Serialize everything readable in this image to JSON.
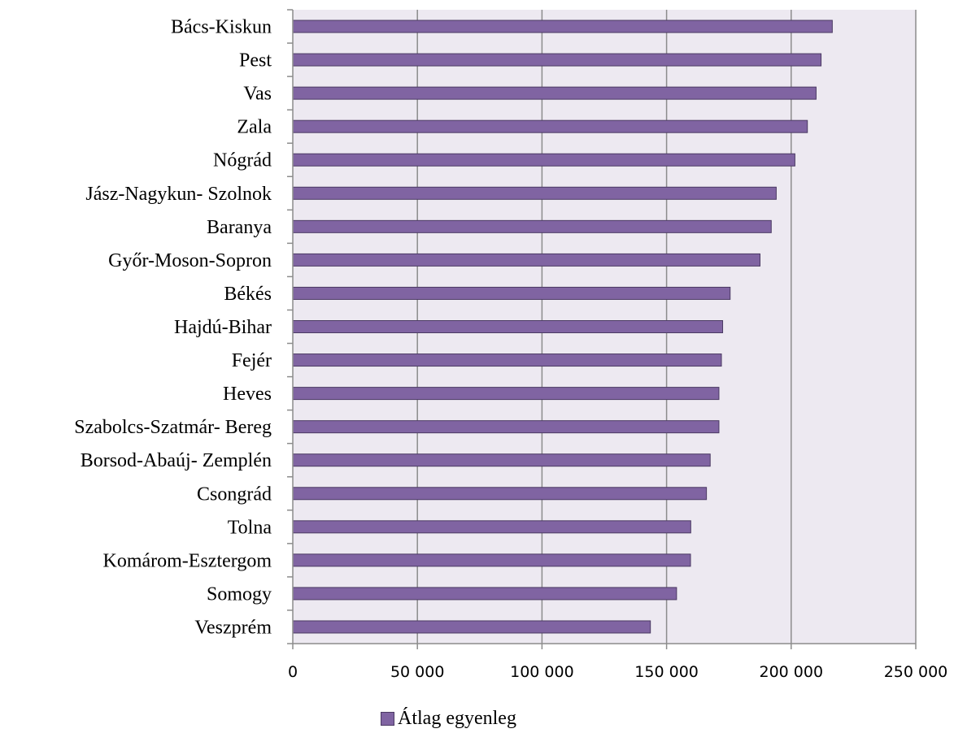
{
  "chart_data": {
    "type": "bar",
    "orientation": "horizontal",
    "categories": [
      "Bács-Kiskun",
      "Pest",
      "Vas",
      "Zala",
      "Nógrád",
      "Jász-Nagykun- Szolnok",
      "Baranya",
      "Győr-Moson-Sopron",
      "Békés",
      "Hajdú-Bihar",
      "Fejér",
      "Heves",
      "Szabolcs-Szatmár- Bereg",
      "Borsod-Abaúj- Zemplén",
      "Csongrád",
      "Tolna",
      "Komárom-Esztergom",
      "Somogy",
      "Veszprém"
    ],
    "series": [
      {
        "name": "Átlag egyenleg",
        "color": "#8064a2",
        "values": [
          216500,
          212000,
          210000,
          206500,
          201500,
          194000,
          192000,
          187500,
          175500,
          172500,
          172000,
          171000,
          171000,
          167500,
          166000,
          159700,
          159600,
          154000,
          143500
        ]
      }
    ],
    "xlim": [
      0,
      250000
    ],
    "xticks": [
      0,
      50000,
      100000,
      150000,
      200000,
      250000
    ],
    "xtick_labels": [
      "0",
      "50 000",
      "100 000",
      "150 000",
      "200 000",
      "250 000"
    ],
    "grid": "vertical major gridlines",
    "plot_background": "#ede9f1",
    "legend_position": "bottom",
    "title": "",
    "xlabel": "",
    "ylabel": ""
  },
  "legend": {
    "label": "Átlag egyenleg"
  }
}
